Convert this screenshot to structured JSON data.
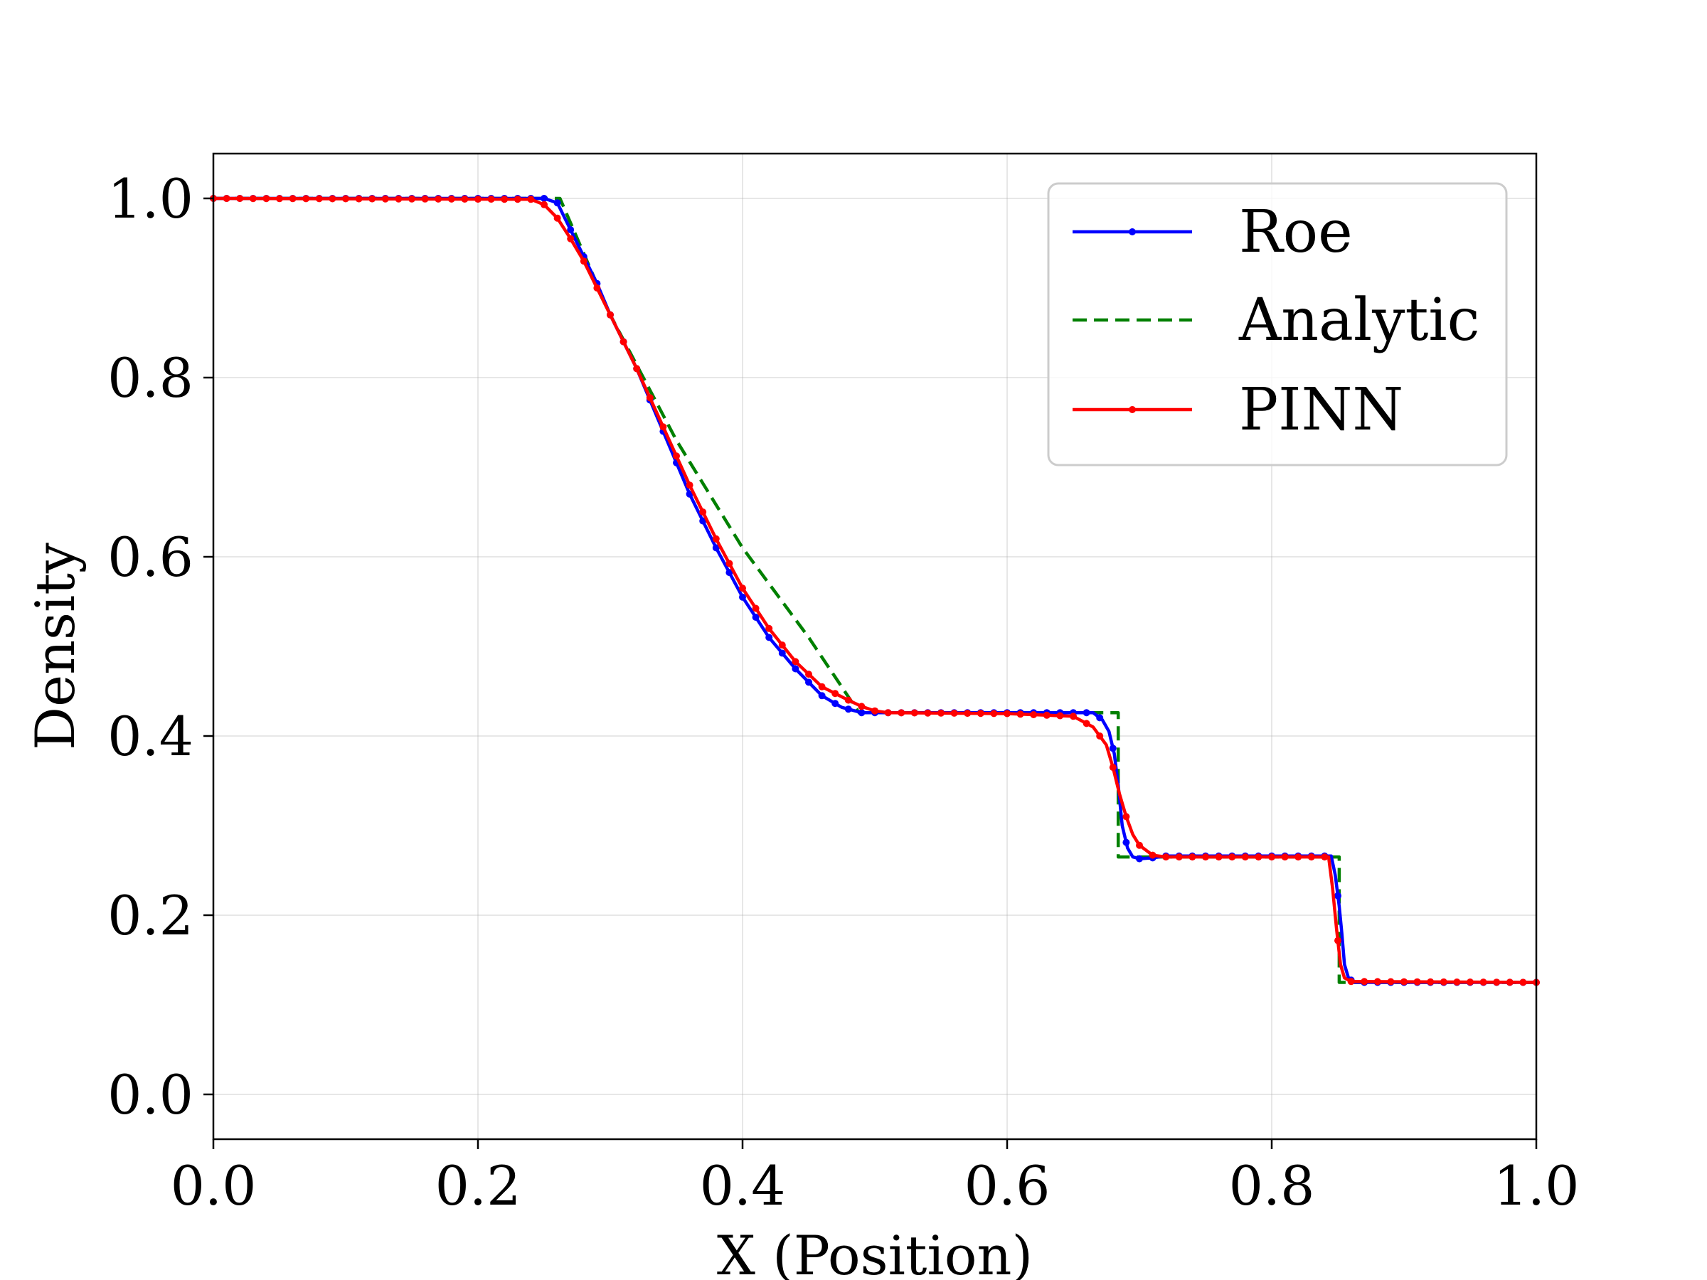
{
  "chart_data": {
    "type": "line",
    "xlabel": "X (Position)",
    "ylabel": "Density",
    "xlim": [
      0.0,
      1.0
    ],
    "ylim": [
      -0.05,
      1.05
    ],
    "grid": true,
    "legend_position": "top-right",
    "x_ticks": [
      "0.0",
      "0.2",
      "0.4",
      "0.6",
      "0.8",
      "1.0"
    ],
    "y_ticks": [
      "0.0",
      "0.2",
      "0.4",
      "0.6",
      "0.8",
      "1.0"
    ],
    "series": [
      {
        "name": "Roe",
        "color": "#0000ff",
        "style": "solid-markers",
        "x": [
          0.0,
          0.25,
          0.26,
          0.265,
          0.27,
          0.28,
          0.29,
          0.3,
          0.32,
          0.34,
          0.36,
          0.38,
          0.4,
          0.42,
          0.44,
          0.46,
          0.475,
          0.485,
          0.49,
          0.5,
          0.6,
          0.665,
          0.672,
          0.677,
          0.681,
          0.684,
          0.687,
          0.691,
          0.695,
          0.7,
          0.71,
          0.72,
          0.845,
          0.848,
          0.851,
          0.853,
          0.855,
          0.858,
          0.862,
          1.0
        ],
        "y": [
          1.0,
          1.0,
          0.995,
          0.98,
          0.965,
          0.935,
          0.905,
          0.87,
          0.81,
          0.74,
          0.67,
          0.61,
          0.555,
          0.51,
          0.475,
          0.445,
          0.432,
          0.428,
          0.426,
          0.426,
          0.426,
          0.426,
          0.418,
          0.405,
          0.38,
          0.345,
          0.3,
          0.275,
          0.265,
          0.263,
          0.264,
          0.266,
          0.266,
          0.245,
          0.21,
          0.18,
          0.145,
          0.13,
          0.125,
          0.125
        ]
      },
      {
        "name": "Analytic",
        "color": "#008000",
        "style": "dashed",
        "x": [
          0.0,
          0.262,
          0.3,
          0.35,
          0.4,
          0.45,
          0.488,
          0.684,
          0.684,
          0.685,
          0.685,
          0.851,
          0.851,
          0.852,
          0.852,
          1.0
        ],
        "y": [
          1.0,
          1.0,
          0.87,
          0.73,
          0.61,
          0.51,
          0.426,
          0.426,
          0.426,
          0.426,
          0.265,
          0.265,
          0.265,
          0.265,
          0.125,
          0.125
        ],
        "x_step": [
          0.0,
          0.262,
          0.3,
          0.35,
          0.4,
          0.45,
          0.488,
          0.684,
          0.684,
          0.851,
          0.851,
          1.0
        ],
        "y_step": [
          1.0,
          1.0,
          0.87,
          0.73,
          0.61,
          0.51,
          0.426,
          0.426,
          0.265,
          0.265,
          0.125,
          0.125
        ]
      },
      {
        "name": "PINN",
        "color": "#ff0000",
        "style": "solid-markers",
        "x": [
          0.0,
          0.24,
          0.25,
          0.26,
          0.27,
          0.28,
          0.29,
          0.3,
          0.32,
          0.34,
          0.36,
          0.38,
          0.4,
          0.42,
          0.44,
          0.46,
          0.48,
          0.49,
          0.5,
          0.51,
          0.6,
          0.65,
          0.665,
          0.675,
          0.68,
          0.685,
          0.69,
          0.695,
          0.7,
          0.71,
          0.72,
          0.843,
          0.846,
          0.849,
          0.852,
          0.855,
          0.86,
          1.0
        ],
        "y": [
          1.0,
          0.999,
          0.993,
          0.978,
          0.955,
          0.93,
          0.9,
          0.87,
          0.81,
          0.745,
          0.68,
          0.62,
          0.565,
          0.52,
          0.483,
          0.455,
          0.44,
          0.433,
          0.428,
          0.426,
          0.425,
          0.422,
          0.41,
          0.39,
          0.365,
          0.335,
          0.31,
          0.29,
          0.278,
          0.267,
          0.265,
          0.265,
          0.23,
          0.185,
          0.145,
          0.13,
          0.126,
          0.125
        ]
      }
    ]
  }
}
